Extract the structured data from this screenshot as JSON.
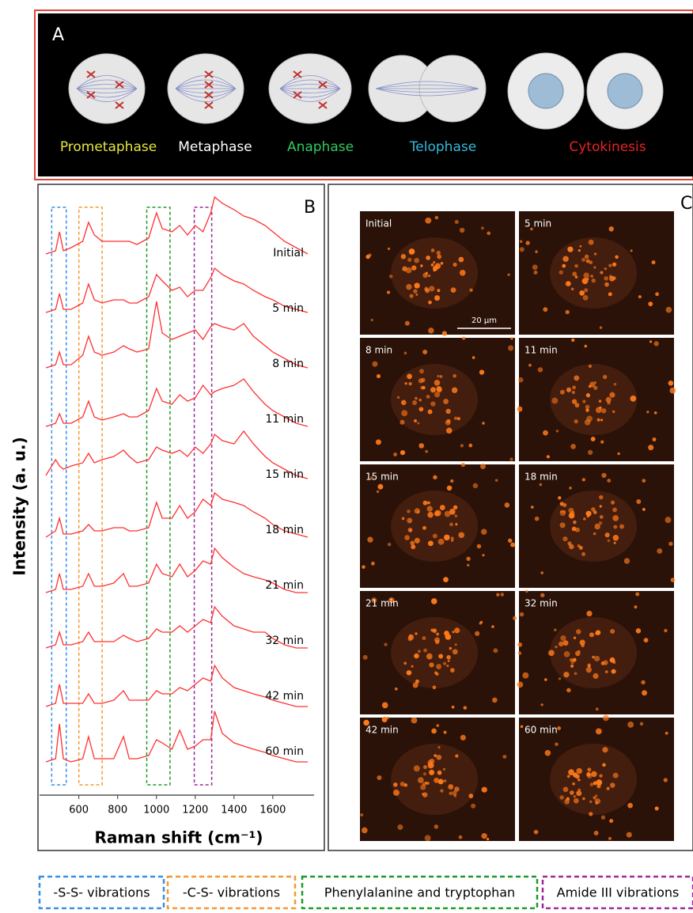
{
  "panel_a": {
    "label": "A",
    "stages": [
      {
        "name": "Prometaphase",
        "color": "#e6e640"
      },
      {
        "name": "Metaphase",
        "color": "#ffffff"
      },
      {
        "name": "Anaphase",
        "color": "#2ecc5e"
      },
      {
        "name": "Telophase",
        "color": "#35b9dc"
      },
      {
        "name": "Cytokinesis",
        "color": "#e82222"
      }
    ]
  },
  "chart_data": {
    "type": "line",
    "panel_label": "B",
    "x_label": "Raman shift (cm⁻¹)",
    "y_label": "Intensity (a. u.)",
    "xlim": [
      430,
      1780
    ],
    "xticks": [
      600,
      800,
      1000,
      1200,
      1400,
      1600
    ],
    "x": [
      430,
      480,
      500,
      520,
      560,
      620,
      650,
      680,
      720,
      780,
      830,
      860,
      900,
      960,
      1000,
      1030,
      1080,
      1120,
      1160,
      1200,
      1240,
      1280,
      1300,
      1340,
      1400,
      1450,
      1500,
      1560,
      1600,
      1660,
      1720,
      1780
    ],
    "series": [
      {
        "name": "Initial",
        "color": "#ff3030",
        "values": [
          0.6,
          0.7,
          1.3,
          0.7,
          0.8,
          1.0,
          1.6,
          1.2,
          1.0,
          1.0,
          1.0,
          1.0,
          0.9,
          1.1,
          1.9,
          1.4,
          1.3,
          1.5,
          1.2,
          1.5,
          1.3,
          1.9,
          2.4,
          2.2,
          2.0,
          1.8,
          1.7,
          1.5,
          1.3,
          1.0,
          0.8,
          0.6
        ]
      },
      {
        "name": "5 min",
        "color": "#ff3030",
        "values": [
          0.5,
          0.6,
          1.1,
          0.6,
          0.6,
          0.8,
          1.4,
          0.9,
          0.8,
          0.9,
          0.9,
          0.8,
          0.8,
          1.0,
          1.7,
          1.5,
          1.2,
          1.3,
          1.0,
          1.2,
          1.2,
          1.6,
          1.9,
          1.7,
          1.5,
          1.4,
          1.2,
          1.0,
          0.9,
          0.7,
          0.6,
          0.5
        ]
      },
      {
        "name": "8 min",
        "color": "#ff3030",
        "values": [
          0.5,
          0.6,
          1.0,
          0.6,
          0.6,
          0.9,
          1.5,
          1.0,
          0.9,
          1.0,
          1.2,
          1.1,
          1.0,
          1.1,
          2.6,
          1.6,
          1.4,
          1.5,
          1.6,
          1.7,
          1.4,
          1.8,
          1.9,
          1.8,
          1.7,
          1.9,
          1.5,
          1.2,
          1.0,
          0.8,
          0.6,
          0.5
        ]
      },
      {
        "name": "11 min",
        "color": "#ff3030",
        "values": [
          0.4,
          0.5,
          0.8,
          0.5,
          0.5,
          0.7,
          1.2,
          0.7,
          0.6,
          0.7,
          0.8,
          0.7,
          0.7,
          0.9,
          1.6,
          1.2,
          1.1,
          1.4,
          1.2,
          1.3,
          1.7,
          1.4,
          1.5,
          1.6,
          1.7,
          1.9,
          1.5,
          1.1,
          0.9,
          0.7,
          0.5,
          0.4
        ]
      },
      {
        "name": "15 min",
        "color": "#ff3030",
        "values": [
          0.6,
          1.1,
          0.9,
          0.8,
          0.9,
          1.0,
          1.3,
          1.0,
          1.1,
          1.2,
          1.4,
          1.2,
          1.0,
          1.1,
          1.5,
          1.4,
          1.3,
          1.4,
          1.2,
          1.5,
          1.3,
          1.6,
          1.9,
          1.7,
          1.6,
          2.0,
          1.6,
          1.2,
          1.0,
          0.8,
          0.6,
          0.5
        ]
      },
      {
        "name": "18 min",
        "color": "#ff3030",
        "values": [
          0.4,
          0.6,
          1.0,
          0.5,
          0.5,
          0.6,
          0.8,
          0.6,
          0.6,
          0.7,
          0.7,
          0.6,
          0.6,
          0.7,
          1.5,
          1.0,
          1.0,
          1.4,
          1.0,
          1.2,
          1.6,
          1.4,
          1.8,
          1.6,
          1.5,
          1.4,
          1.2,
          1.0,
          0.8,
          0.6,
          0.5,
          0.4
        ]
      },
      {
        "name": "21 min",
        "color": "#ff3030",
        "values": [
          0.4,
          0.5,
          1.0,
          0.5,
          0.5,
          0.6,
          1.0,
          0.6,
          0.6,
          0.7,
          1.0,
          0.6,
          0.6,
          0.7,
          1.3,
          1.0,
          0.9,
          1.3,
          0.9,
          1.1,
          1.4,
          1.3,
          1.8,
          1.5,
          1.2,
          1.0,
          0.9,
          0.8,
          0.7,
          0.5,
          0.4,
          0.4
        ]
      },
      {
        "name": "32 min",
        "color": "#ff3030",
        "values": [
          0.4,
          0.5,
          0.9,
          0.5,
          0.5,
          0.6,
          0.9,
          0.6,
          0.6,
          0.6,
          0.8,
          0.7,
          0.6,
          0.7,
          1.0,
          0.9,
          0.9,
          1.1,
          0.9,
          1.1,
          1.3,
          1.2,
          1.7,
          1.4,
          1.1,
          1.0,
          0.9,
          0.9,
          0.7,
          0.5,
          0.4,
          0.4
        ]
      },
      {
        "name": "42 min",
        "color": "#ff3030",
        "values": [
          0.3,
          0.4,
          1.0,
          0.4,
          0.4,
          0.4,
          0.7,
          0.4,
          0.4,
          0.5,
          0.8,
          0.5,
          0.5,
          0.5,
          0.8,
          0.7,
          0.7,
          0.9,
          0.8,
          1.0,
          1.2,
          1.1,
          1.6,
          1.2,
          0.9,
          0.8,
          0.7,
          0.6,
          0.5,
          0.4,
          0.3,
          0.3
        ]
      },
      {
        "name": "60 min",
        "color": "#ff3030",
        "values": [
          0.3,
          0.4,
          1.5,
          0.4,
          0.3,
          0.4,
          1.1,
          0.4,
          0.4,
          0.4,
          1.1,
          0.4,
          0.4,
          0.5,
          1.0,
          0.9,
          0.7,
          1.3,
          0.7,
          0.8,
          1.0,
          1.0,
          1.9,
          1.2,
          0.9,
          0.8,
          0.7,
          0.6,
          0.5,
          0.4,
          0.3,
          0.3
        ]
      }
    ],
    "regions": [
      {
        "name": "-S-S- vibrations",
        "color": "#3a8fe0",
        "range": [
          460,
          535
        ]
      },
      {
        "name": "-C-S- vibrations",
        "color": "#f39a2e",
        "range": [
          600,
          720
        ]
      },
      {
        "name": "Phenylalanine and tryptophan",
        "color": "#1f9a2a",
        "range": [
          950,
          1070
        ]
      },
      {
        "name": "Amide III vibrations",
        "color": "#9a2a9a",
        "range": [
          1195,
          1285
        ]
      }
    ]
  },
  "panel_c": {
    "label": "C",
    "scale_bar": "20 µm",
    "tiles": [
      "Initial",
      "5 min",
      "8 min",
      "11 min",
      "15 min",
      "18 min",
      "21 min",
      "32 min",
      "42 min",
      "60 min"
    ]
  }
}
